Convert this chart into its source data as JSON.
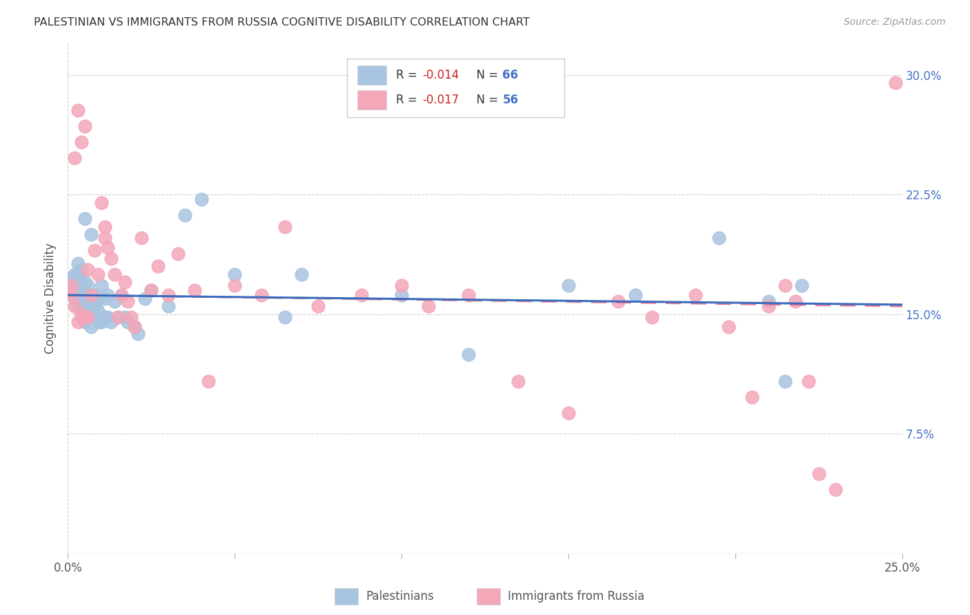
{
  "title": "PALESTINIAN VS IMMIGRANTS FROM RUSSIA COGNITIVE DISABILITY CORRELATION CHART",
  "source": "Source: ZipAtlas.com",
  "ylabel": "Cognitive Disability",
  "x_min": 0.0,
  "x_max": 0.25,
  "y_min": 0.0,
  "y_max": 0.32,
  "x_ticks": [
    0.0,
    0.05,
    0.1,
    0.15,
    0.2,
    0.25
  ],
  "x_tick_labels": [
    "0.0%",
    "",
    "",
    "",
    "",
    "25.0%"
  ],
  "y_ticks": [
    0.075,
    0.15,
    0.225,
    0.3
  ],
  "y_tick_labels": [
    "7.5%",
    "15.0%",
    "22.5%",
    "30.0%"
  ],
  "palestinians_R": "-0.014",
  "palestinians_N": "66",
  "russia_R": "-0.017",
  "russia_N": "56",
  "blue_color": "#a8c4e0",
  "pink_color": "#f4a7b9",
  "blue_line_color": "#3a6bbd",
  "pink_line_color": "#e87a9a",
  "blue_line_y0": 0.162,
  "blue_line_y1": 0.156,
  "pink_line_y0": 0.162,
  "pink_line_y1": 0.155,
  "palestinians_x": [
    0.001,
    0.001,
    0.002,
    0.002,
    0.002,
    0.003,
    0.003,
    0.003,
    0.003,
    0.003,
    0.004,
    0.004,
    0.004,
    0.004,
    0.004,
    0.005,
    0.005,
    0.005,
    0.005,
    0.005,
    0.005,
    0.006,
    0.006,
    0.006,
    0.006,
    0.007,
    0.007,
    0.007,
    0.007,
    0.007,
    0.008,
    0.008,
    0.008,
    0.009,
    0.009,
    0.009,
    0.01,
    0.01,
    0.011,
    0.011,
    0.012,
    0.012,
    0.013,
    0.014,
    0.015,
    0.016,
    0.017,
    0.018,
    0.02,
    0.021,
    0.023,
    0.025,
    0.03,
    0.035,
    0.04,
    0.05,
    0.065,
    0.07,
    0.1,
    0.12,
    0.15,
    0.17,
    0.195,
    0.21,
    0.215,
    0.22
  ],
  "palestinians_y": [
    0.165,
    0.172,
    0.16,
    0.168,
    0.175,
    0.155,
    0.162,
    0.168,
    0.175,
    0.182,
    0.148,
    0.156,
    0.162,
    0.17,
    0.178,
    0.145,
    0.152,
    0.158,
    0.163,
    0.17,
    0.21,
    0.148,
    0.155,
    0.162,
    0.168,
    0.142,
    0.148,
    0.155,
    0.162,
    0.2,
    0.148,
    0.155,
    0.162,
    0.145,
    0.152,
    0.159,
    0.145,
    0.168,
    0.148,
    0.16,
    0.148,
    0.162,
    0.145,
    0.158,
    0.148,
    0.162,
    0.148,
    0.145,
    0.142,
    0.138,
    0.16,
    0.165,
    0.155,
    0.212,
    0.222,
    0.175,
    0.148,
    0.175,
    0.162,
    0.125,
    0.168,
    0.162,
    0.198,
    0.158,
    0.108,
    0.168
  ],
  "russia_x": [
    0.001,
    0.001,
    0.002,
    0.002,
    0.003,
    0.003,
    0.004,
    0.004,
    0.005,
    0.005,
    0.006,
    0.006,
    0.007,
    0.008,
    0.009,
    0.01,
    0.011,
    0.011,
    0.012,
    0.013,
    0.014,
    0.015,
    0.016,
    0.017,
    0.018,
    0.019,
    0.02,
    0.022,
    0.025,
    0.027,
    0.03,
    0.033,
    0.038,
    0.042,
    0.05,
    0.058,
    0.065,
    0.075,
    0.088,
    0.1,
    0.108,
    0.12,
    0.135,
    0.15,
    0.165,
    0.175,
    0.188,
    0.198,
    0.205,
    0.21,
    0.215,
    0.218,
    0.222,
    0.225,
    0.23,
    0.248
  ],
  "russia_y": [
    0.162,
    0.168,
    0.155,
    0.248,
    0.145,
    0.278,
    0.15,
    0.258,
    0.148,
    0.268,
    0.148,
    0.178,
    0.162,
    0.19,
    0.175,
    0.22,
    0.198,
    0.205,
    0.192,
    0.185,
    0.175,
    0.148,
    0.162,
    0.17,
    0.158,
    0.148,
    0.142,
    0.198,
    0.165,
    0.18,
    0.162,
    0.188,
    0.165,
    0.108,
    0.168,
    0.162,
    0.205,
    0.155,
    0.162,
    0.168,
    0.155,
    0.162,
    0.108,
    0.088,
    0.158,
    0.148,
    0.162,
    0.142,
    0.098,
    0.155,
    0.168,
    0.158,
    0.108,
    0.05,
    0.04,
    0.295
  ]
}
